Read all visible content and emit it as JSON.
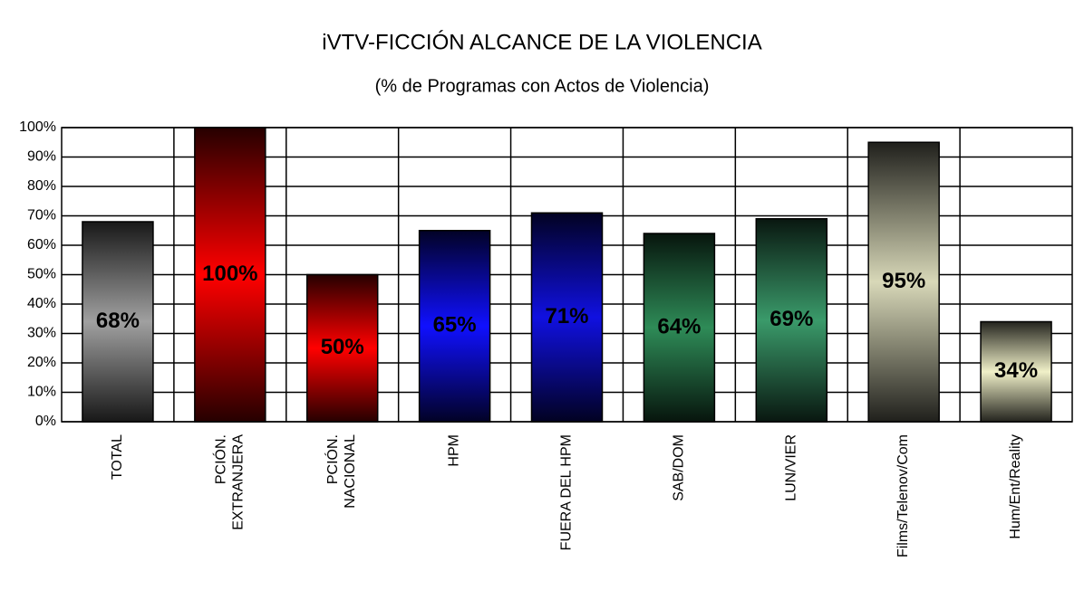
{
  "chart_data": {
    "type": "bar",
    "title": "iVTV-FICCIÓN  ALCANCE DE LA VIOLENCIA",
    "subtitle": "(% de Programas con Actos de Violencia)",
    "categories": [
      "TOTAL",
      "PCIÓN.\nEXTRANJERA",
      "PCIÓN.\nNACIONAL",
      "HPM",
      "FUERA DEL HPM",
      "SAB/DOM",
      "LUN/VIER",
      "Films/Telenov/Com",
      "Hum/Ent/Reality"
    ],
    "values": [
      68,
      100,
      50,
      65,
      71,
      64,
      69,
      95,
      34
    ],
    "value_labels": [
      "68%",
      "100%",
      "50%",
      "65%",
      "71%",
      "64%",
      "69%",
      "95%",
      "34%"
    ],
    "colors": [
      "#a0a0a0",
      "#ff0000",
      "#ff0000",
      "#1010ff",
      "#1010e0",
      "#2e8b57",
      "#3a9a6a",
      "#d8d8b8",
      "#f0f0c8"
    ],
    "ylim": [
      0,
      100
    ],
    "yticks": [
      {
        "value": 0,
        "label": "0%"
      },
      {
        "value": 10,
        "label": "10%"
      },
      {
        "value": 20,
        "label": "20%"
      },
      {
        "value": 30,
        "label": "30%"
      },
      {
        "value": 40,
        "label": "40%"
      },
      {
        "value": 50,
        "label": "50%"
      },
      {
        "value": 60,
        "label": "60%"
      },
      {
        "value": 70,
        "label": "70%"
      },
      {
        "value": 80,
        "label": "80%"
      },
      {
        "value": 90,
        "label": "90%"
      },
      {
        "value": 100,
        "label": "100%"
      }
    ],
    "grid": true
  }
}
